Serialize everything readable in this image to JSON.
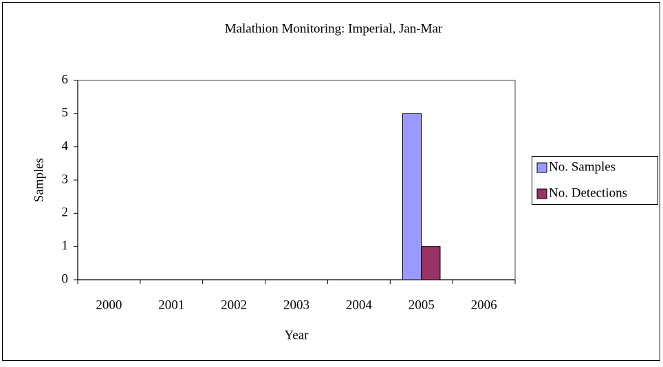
{
  "chart_data": {
    "type": "bar",
    "title": "Malathion Monitoring: Imperial, Jan-Mar",
    "x_label": "Year",
    "y_label": "Samples",
    "categories": [
      "2000",
      "2001",
      "2002",
      "2003",
      "2004",
      "2005",
      "2006"
    ],
    "series": [
      {
        "name": "No. Samples",
        "color": "#9999ff",
        "values": [
          0,
          0,
          0,
          0,
          0,
          5,
          0
        ]
      },
      {
        "name": "No. Detections",
        "color": "#993366",
        "values": [
          0,
          0,
          0,
          0,
          0,
          1,
          0
        ]
      }
    ],
    "ylim": [
      0,
      6
    ],
    "yticks": [
      0,
      1,
      2,
      3,
      4,
      5,
      6
    ],
    "grid": false,
    "legend": "right"
  }
}
